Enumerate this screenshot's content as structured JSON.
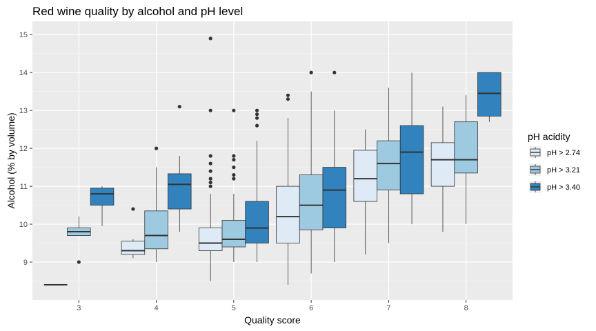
{
  "chart_data": {
    "type": "boxplot",
    "title": "Red wine quality by alcohol and pH level",
    "xlabel": "Quality score",
    "ylabel": "Alcohol (% by volume)",
    "ylim": [
      8.0,
      15.35
    ],
    "yticks": [
      9,
      10,
      11,
      12,
      13,
      14,
      15
    ],
    "categories": [
      "3",
      "4",
      "5",
      "6",
      "7",
      "8"
    ],
    "legend": {
      "title": "pH acidity",
      "position": "right",
      "entries": [
        "pH > 2.74",
        "pH > 3.21",
        "pH > 3.40"
      ]
    },
    "colors": [
      "#deebf7",
      "#9ecae1",
      "#3182bd"
    ],
    "series": [
      {
        "name": "pH > 2.74",
        "boxes": [
          {
            "category": "3",
            "min": 8.4,
            "q1": 8.4,
            "median": 8.4,
            "q3": 8.4,
            "max": 8.4,
            "outliers": []
          },
          {
            "category": "4",
            "min": 9.1,
            "q1": 9.2,
            "median": 9.3,
            "q3": 9.55,
            "max": 9.6,
            "outliers": [
              10.4
            ]
          },
          {
            "category": "5",
            "min": 8.5,
            "q1": 9.3,
            "median": 9.5,
            "q3": 9.9,
            "max": 10.8,
            "outliers": [
              11.0,
              11.1,
              11.2,
              11.4,
              11.6,
              11.8,
              13.0,
              14.9
            ]
          },
          {
            "category": "6",
            "min": 8.4,
            "q1": 9.5,
            "median": 10.2,
            "q3": 11.0,
            "max": 12.8,
            "outliers": [
              13.3,
              13.4
            ]
          },
          {
            "category": "7",
            "min": 9.2,
            "q1": 10.6,
            "median": 11.2,
            "q3": 11.95,
            "max": 12.5,
            "outliers": []
          },
          {
            "category": "8",
            "min": 9.8,
            "q1": 11.0,
            "median": 11.7,
            "q3": 12.15,
            "max": 13.1,
            "outliers": []
          }
        ]
      },
      {
        "name": "pH > 3.21",
        "boxes": [
          {
            "category": "3",
            "min": 9.7,
            "q1": 9.7,
            "median": 9.8,
            "q3": 9.9,
            "max": 10.2,
            "outliers": [
              9.0
            ]
          },
          {
            "category": "4",
            "min": 9.0,
            "q1": 9.35,
            "median": 9.7,
            "q3": 10.35,
            "max": 11.5,
            "outliers": [
              12.0
            ]
          },
          {
            "category": "5",
            "min": 9.0,
            "q1": 9.4,
            "median": 9.6,
            "q3": 10.1,
            "max": 10.8,
            "outliers": [
              11.2,
              11.3,
              11.5,
              11.7,
              11.8,
              13.0
            ]
          },
          {
            "category": "6",
            "min": 8.7,
            "q1": 9.85,
            "median": 10.5,
            "q3": 11.3,
            "max": 13.5,
            "outliers": [
              14.0
            ]
          },
          {
            "category": "7",
            "min": 9.5,
            "q1": 10.9,
            "median": 11.6,
            "q3": 12.2,
            "max": 13.6,
            "outliers": []
          },
          {
            "category": "8",
            "min": 10.0,
            "q1": 11.35,
            "median": 11.7,
            "q3": 12.7,
            "max": 13.4,
            "outliers": []
          }
        ]
      },
      {
        "name": "pH > 3.40",
        "boxes": [
          {
            "category": "3",
            "min": 9.95,
            "q1": 10.5,
            "median": 10.8,
            "q3": 10.95,
            "max": 11.0,
            "outliers": []
          },
          {
            "category": "4",
            "min": 9.8,
            "q1": 10.4,
            "median": 11.05,
            "q3": 11.33,
            "max": 11.8,
            "outliers": [
              13.1
            ]
          },
          {
            "category": "5",
            "min": 9.0,
            "q1": 9.5,
            "median": 9.9,
            "q3": 10.6,
            "max": 12.2,
            "outliers": [
              12.6,
              12.8,
              12.9,
              13.0
            ]
          },
          {
            "category": "6",
            "min": 9.0,
            "q1": 9.9,
            "median": 10.9,
            "q3": 11.5,
            "max": 13.0,
            "outliers": [
              14.0
            ]
          },
          {
            "category": "7",
            "min": 10.0,
            "q1": 10.8,
            "median": 11.9,
            "q3": 12.6,
            "max": 14.0,
            "outliers": []
          },
          {
            "category": "8",
            "min": 12.7,
            "q1": 12.85,
            "median": 13.45,
            "q3": 14.0,
            "max": 14.0,
            "outliers": []
          }
        ]
      }
    ]
  }
}
